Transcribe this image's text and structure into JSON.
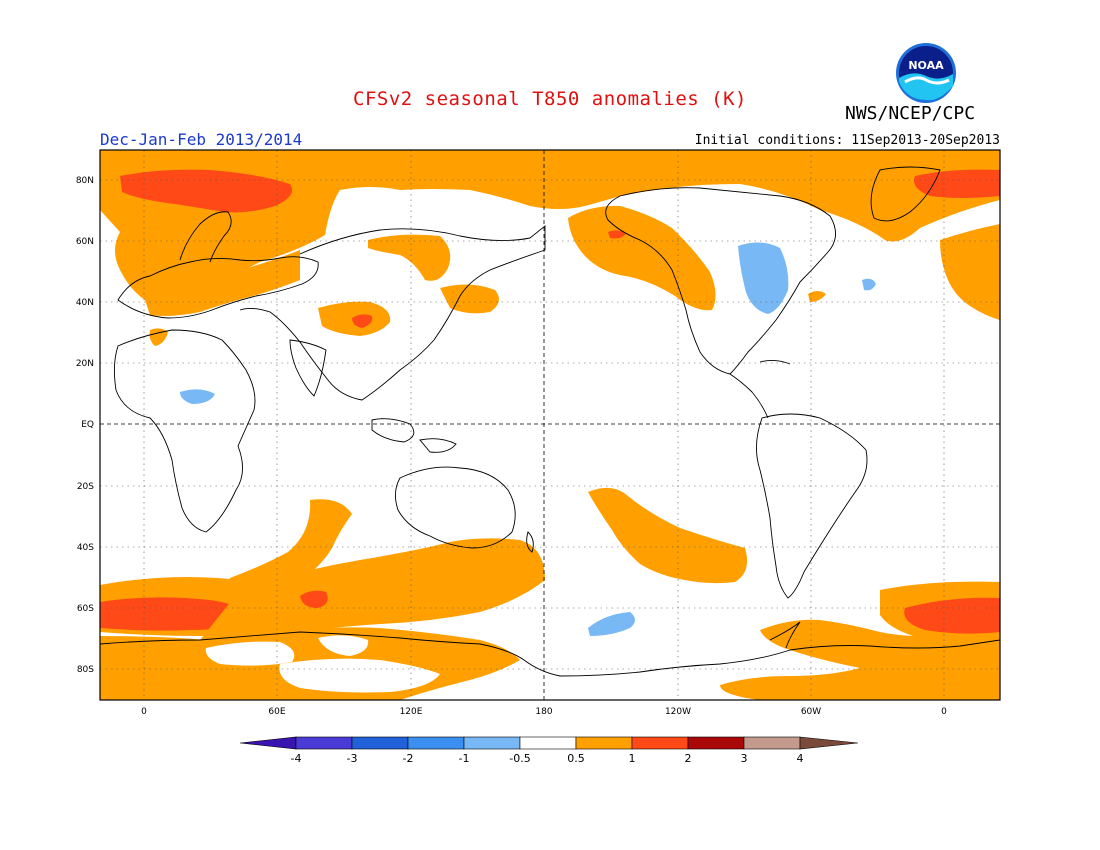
{
  "header": {
    "title": "CFSv2 seasonal T850 anomalies (K)",
    "agency": "NWS/NCEP/CPC",
    "period": "Dec-Jan-Feb 2013/2014",
    "initial_conditions": "Initial conditions: 11Sep2013-20Sep2013",
    "logo_text": "NOAA"
  },
  "map": {
    "lat_labels": [
      "80N",
      "60N",
      "40N",
      "20N",
      "EQ",
      "20S",
      "40S",
      "60S",
      "80S"
    ],
    "lon_labels": [
      "0",
      "60E",
      "120E",
      "180",
      "120W",
      "60W",
      "0"
    ]
  },
  "colorbar": {
    "tick_labels": [
      "-4",
      "-3",
      "-2",
      "-1",
      "-0.5",
      "0.5",
      "1",
      "2",
      "3",
      "4"
    ],
    "colors": [
      "#3a14b0",
      "#4a3bd6",
      "#2060d8",
      "#3c8ef0",
      "#78b8f5",
      "#ffffff",
      "#ffa000",
      "#ff4a18",
      "#a80808",
      "#c49a8c",
      "#7a4a3a"
    ]
  },
  "palette": {
    "ocean_bg": "#ffffff",
    "anom_0_5_1": "#ffa000",
    "anom_1_2": "#ff4a18",
    "neg_0_5_1": "#78b8f5",
    "grid": "#444444"
  }
}
